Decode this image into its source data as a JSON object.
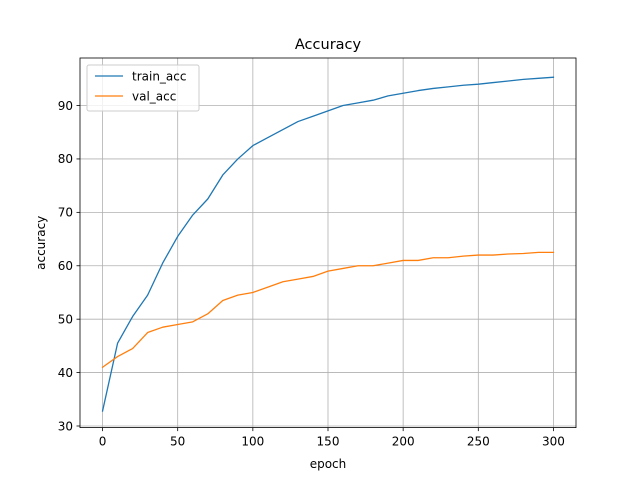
{
  "chart_data": {
    "type": "line",
    "title": "Accuracy",
    "xlabel": "epoch",
    "ylabel": "accuracy",
    "xlim": [
      -15,
      315
    ],
    "ylim": [
      29.7,
      98.9
    ],
    "xticks": [
      0,
      50,
      100,
      150,
      200,
      250,
      300
    ],
    "yticks": [
      30,
      40,
      50,
      60,
      70,
      80,
      90
    ],
    "grid": true,
    "legend_position": "top-left",
    "x": [
      0,
      10,
      20,
      30,
      40,
      50,
      60,
      70,
      80,
      90,
      100,
      110,
      120,
      130,
      140,
      150,
      160,
      170,
      180,
      190,
      200,
      210,
      220,
      230,
      240,
      250,
      260,
      270,
      280,
      290,
      300
    ],
    "series": [
      {
        "name": "train_acc",
        "color": "#1f77b4",
        "values": [
          32.8,
          45.5,
          50.5,
          54.5,
          60.5,
          65.5,
          69.5,
          72.5,
          77.0,
          80.0,
          82.5,
          84.0,
          85.5,
          87.0,
          88.0,
          89.0,
          90.0,
          90.5,
          91.0,
          91.8,
          92.3,
          92.8,
          93.2,
          93.5,
          93.8,
          94.0,
          94.3,
          94.6,
          94.9,
          95.1,
          95.3
        ]
      },
      {
        "name": "val_acc",
        "color": "#ff7f0e",
        "values": [
          41.0,
          43.0,
          44.5,
          47.5,
          48.5,
          49.0,
          49.5,
          51.0,
          53.5,
          54.5,
          55.0,
          56.0,
          57.0,
          57.5,
          58.0,
          59.0,
          59.5,
          60.0,
          60.0,
          60.5,
          61.0,
          61.0,
          61.5,
          61.5,
          61.8,
          62.0,
          62.0,
          62.2,
          62.3,
          62.5,
          62.5
        ]
      }
    ]
  }
}
